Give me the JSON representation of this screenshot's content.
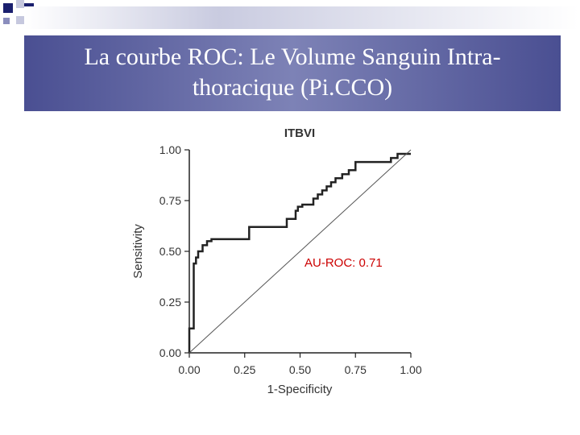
{
  "slide": {
    "title_line1": "La courbe ROC: Le Volume Sanguin Intra-",
    "title_line2": "thoracique (Pi.CCO)"
  },
  "theme": {
    "title_band_color": "#5b5fa0",
    "square_color": "#1a1f6e",
    "curve_color": "#222222",
    "annotation_color": "#cc0000"
  },
  "chart_data": {
    "type": "line",
    "title": "ITBVI",
    "xlabel": "1-Specificity",
    "ylabel": "Sensitivity",
    "xlim": [
      0,
      1
    ],
    "ylim": [
      0,
      1
    ],
    "x_ticks": [
      "0.00",
      "0.25",
      "0.50",
      "0.75",
      "1.00"
    ],
    "y_ticks": [
      "0.00",
      "0.25",
      "0.50",
      "0.75",
      "1.00"
    ],
    "annotation": "AU-ROC: 0.71",
    "grid": false,
    "series": [
      {
        "x": [
          0.0,
          0.0,
          0.02,
          0.02,
          0.03,
          0.03,
          0.04,
          0.04,
          0.06,
          0.06,
          0.08,
          0.08,
          0.1,
          0.1,
          0.27,
          0.27,
          0.44,
          0.44,
          0.48,
          0.48,
          0.49,
          0.49,
          0.51,
          0.51,
          0.56,
          0.56,
          0.58,
          0.58,
          0.6,
          0.6,
          0.62,
          0.62,
          0.64,
          0.64,
          0.66,
          0.66,
          0.69,
          0.69,
          0.72,
          0.72,
          0.75,
          0.75,
          0.91,
          0.91,
          0.94,
          0.94,
          1.0
        ],
        "y": [
          0.0,
          0.12,
          0.12,
          0.44,
          0.44,
          0.47,
          0.47,
          0.5,
          0.5,
          0.53,
          0.53,
          0.55,
          0.55,
          0.56,
          0.56,
          0.62,
          0.62,
          0.66,
          0.66,
          0.7,
          0.7,
          0.72,
          0.72,
          0.73,
          0.73,
          0.76,
          0.76,
          0.78,
          0.78,
          0.8,
          0.8,
          0.82,
          0.82,
          0.84,
          0.84,
          0.86,
          0.86,
          0.88,
          0.88,
          0.9,
          0.9,
          0.94,
          0.94,
          0.96,
          0.96,
          0.98,
          0.98
        ]
      },
      {
        "x": [
          0,
          1
        ],
        "y": [
          0,
          1
        ]
      }
    ]
  }
}
